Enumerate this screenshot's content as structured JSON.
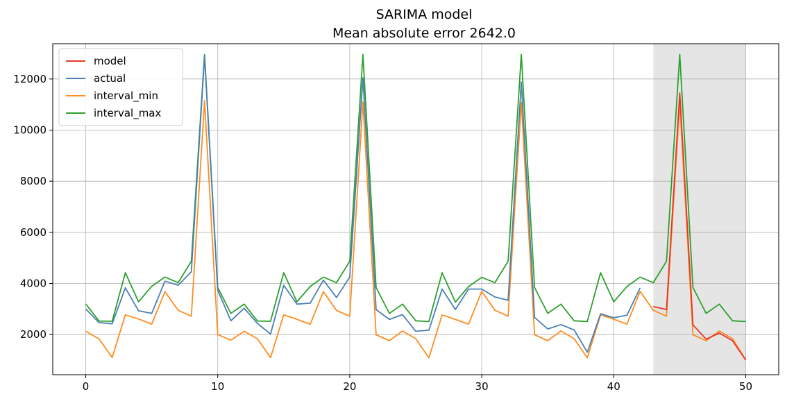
{
  "chart_data": {
    "type": "line",
    "title": "SARIMA model",
    "subtitle": "Mean absolute error 2642.0",
    "xlabel": "",
    "ylabel": "",
    "xlim": [
      -2.5,
      52.5
    ],
    "ylim": [
      430,
      13380
    ],
    "xticks": [
      0,
      10,
      20,
      30,
      40,
      50
    ],
    "yticks": [
      2000,
      4000,
      6000,
      8000,
      10000,
      12000
    ],
    "grid": true,
    "legend_position": "upper-left",
    "shaded_region": {
      "x": [
        43,
        50
      ],
      "color": "#e5e5e5"
    },
    "x": [
      0,
      1,
      2,
      3,
      4,
      5,
      6,
      7,
      8,
      9,
      10,
      11,
      12,
      13,
      14,
      15,
      16,
      17,
      18,
      19,
      20,
      21,
      22,
      23,
      24,
      25,
      26,
      27,
      28,
      29,
      30,
      31,
      32,
      33,
      34,
      35,
      36,
      37,
      38,
      39,
      40,
      41,
      42,
      43,
      44,
      45,
      46,
      47,
      48,
      49,
      50
    ],
    "series": [
      {
        "name": "model",
        "color": "#e8352a",
        "values": [
          null,
          null,
          null,
          null,
          null,
          null,
          null,
          null,
          null,
          null,
          null,
          null,
          null,
          null,
          null,
          null,
          null,
          null,
          null,
          null,
          null,
          null,
          null,
          null,
          null,
          null,
          null,
          null,
          null,
          null,
          null,
          null,
          null,
          null,
          null,
          null,
          null,
          null,
          null,
          null,
          null,
          null,
          null,
          3100,
          2980,
          11450,
          2380,
          1820,
          2060,
          1760,
          1000
        ]
      },
      {
        "name": "actual",
        "color": "#4a7fb5",
        "values": [
          3000,
          2470,
          2420,
          3830,
          2930,
          2830,
          4090,
          3930,
          4460,
          12900,
          3730,
          2540,
          3030,
          2440,
          2020,
          3930,
          3190,
          3230,
          4130,
          3450,
          4250,
          12050,
          2980,
          2590,
          2780,
          2130,
          2170,
          3780,
          2980,
          3780,
          3780,
          3470,
          3340,
          11880,
          2670,
          2220,
          2390,
          2180,
          1310,
          2810,
          2660,
          2760,
          3820,
          null,
          null,
          null,
          null,
          null,
          null,
          null,
          null
        ]
      },
      {
        "name": "interval_min",
        "color": "#ff8c1f",
        "values": [
          2130,
          1830,
          1100,
          2770,
          2610,
          2410,
          3680,
          2950,
          2720,
          11150,
          2000,
          1780,
          2130,
          1840,
          1100,
          2770,
          2600,
          2400,
          3680,
          2940,
          2720,
          11100,
          1990,
          1760,
          2140,
          1840,
          1090,
          2770,
          2590,
          2410,
          3690,
          2950,
          2720,
          11080,
          1990,
          1760,
          2140,
          1840,
          1090,
          2770,
          2600,
          2410,
          3690,
          2950,
          2720,
          11080,
          1990,
          1760,
          2140,
          1840,
          1010
        ]
      },
      {
        "name": "interval_max",
        "color": "#2ca02c",
        "values": [
          3200,
          2530,
          2520,
          4420,
          3280,
          3890,
          4250,
          4030,
          4870,
          12960,
          3840,
          2830,
          3190,
          2530,
          2520,
          4420,
          3280,
          3880,
          4250,
          4030,
          4870,
          12960,
          3840,
          2830,
          3190,
          2540,
          2510,
          4420,
          3270,
          3880,
          4240,
          4030,
          4870,
          12960,
          3840,
          2830,
          3190,
          2540,
          2510,
          4420,
          3280,
          3880,
          4250,
          4030,
          4870,
          12960,
          3840,
          2830,
          3190,
          2540,
          2510
        ]
      }
    ]
  }
}
